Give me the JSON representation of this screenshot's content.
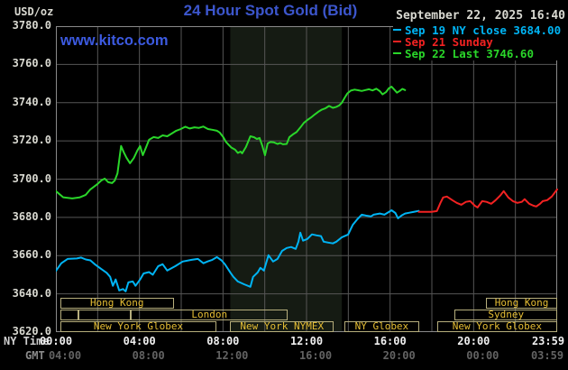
{
  "header": {
    "timestamp": "September 22, 2025 16:40",
    "watermark": "www.kitco.com"
  },
  "chart_data": {
    "type": "line",
    "title": "24 Hour Spot Gold (Bid)",
    "x_unit": "NY time, hours from 00:00",
    "x_range": [
      0,
      24
    ],
    "y_range": [
      3620,
      3780
    ],
    "y_tick_step": 20,
    "grid": true,
    "colors": {
      "background": "#000000",
      "grid": "#565656",
      "border": "#8a8a8a",
      "nymex_band": "#151b13",
      "title_blue": "#3c56cd"
    },
    "y_axis": {
      "units": "USD/oz",
      "ticks": [
        "3780.0",
        "3760.0",
        "3740.0",
        "3720.0",
        "3700.0",
        "3680.0",
        "3660.0",
        "3640.0",
        "3620.0"
      ]
    },
    "x_axis": {
      "ny_label": "NY Time",
      "gmt_label": "GMT",
      "tick_hours": [
        0,
        4,
        8,
        12,
        16,
        20,
        24
      ],
      "ny_ticks": [
        "00:00",
        "04:00",
        "08:00",
        "12:00",
        "16:00",
        "20:00",
        "23:59"
      ],
      "gmt_ticks": [
        "04:00",
        "08:00",
        "12:00",
        "16:00",
        "20:00",
        "00:00",
        "03:59"
      ],
      "ny_color": "#f0f0f0",
      "gmt_color": "#636363"
    },
    "legend": [
      {
        "label": "Sep 19 NY close 3684.00",
        "color": "#00b4f4"
      },
      {
        "label": "Sep 21 Sunday",
        "color": "#f32222"
      },
      {
        "label": "Sep 22 Last 3746.60",
        "color": "#2ad62a"
      }
    ],
    "nymex_band": {
      "h0": 8.35,
      "h1": 13.69
    },
    "series": [
      {
        "name": "Sep 19 NY close",
        "color": "#00b4f4",
        "close": 3684.0,
        "points": [
          [
            0,
            3652.0
          ],
          [
            0.26,
            3656.0
          ],
          [
            0.56,
            3658.3
          ],
          [
            1.0,
            3658.5
          ],
          [
            1.21,
            3659.0
          ],
          [
            1.43,
            3658.0
          ],
          [
            1.65,
            3657.5
          ],
          [
            1.86,
            3655.5
          ],
          [
            2.17,
            3653.0
          ],
          [
            2.43,
            3651.0
          ],
          [
            2.6,
            3648.9
          ],
          [
            2.73,
            3644.2
          ],
          [
            2.86,
            3647.5
          ],
          [
            3.03,
            3641.8
          ],
          [
            3.21,
            3642.5
          ],
          [
            3.34,
            3641.3
          ],
          [
            3.47,
            3646.0
          ],
          [
            3.68,
            3646.5
          ],
          [
            3.81,
            3644.2
          ],
          [
            4.03,
            3647.5
          ],
          [
            4.2,
            3650.7
          ],
          [
            4.46,
            3651.4
          ],
          [
            4.64,
            3650.0
          ],
          [
            4.9,
            3654.5
          ],
          [
            5.11,
            3655.5
          ],
          [
            5.33,
            3652.2
          ],
          [
            5.55,
            3653.5
          ],
          [
            5.72,
            3654.5
          ],
          [
            6.07,
            3656.9
          ],
          [
            6.5,
            3657.8
          ],
          [
            6.8,
            3658.3
          ],
          [
            7.06,
            3656.0
          ],
          [
            7.28,
            3657.0
          ],
          [
            7.49,
            3657.8
          ],
          [
            7.71,
            3659.2
          ],
          [
            7.93,
            3657.5
          ],
          [
            8.1,
            3655.4
          ],
          [
            8.36,
            3651.0
          ],
          [
            8.49,
            3649.0
          ],
          [
            8.71,
            3646.5
          ],
          [
            9.01,
            3645.0
          ],
          [
            9.31,
            3643.7
          ],
          [
            9.44,
            3648.9
          ],
          [
            9.66,
            3651.2
          ],
          [
            9.79,
            3653.6
          ],
          [
            9.96,
            3652.2
          ],
          [
            10.18,
            3660.2
          ],
          [
            10.4,
            3656.9
          ],
          [
            10.61,
            3658.3
          ],
          [
            10.83,
            3662.5
          ],
          [
            11.05,
            3664.0
          ],
          [
            11.26,
            3664.5
          ],
          [
            11.48,
            3663.5
          ],
          [
            11.61,
            3667.3
          ],
          [
            11.7,
            3672.0
          ],
          [
            11.83,
            3667.8
          ],
          [
            12.04,
            3668.7
          ],
          [
            12.26,
            3671.1
          ],
          [
            12.48,
            3670.6
          ],
          [
            12.69,
            3670.2
          ],
          [
            12.82,
            3667.3
          ],
          [
            13.04,
            3666.8
          ],
          [
            13.26,
            3666.4
          ],
          [
            13.43,
            3667.3
          ],
          [
            13.69,
            3669.6
          ],
          [
            13.99,
            3671.0
          ],
          [
            14.21,
            3676.0
          ],
          [
            14.43,
            3679.0
          ],
          [
            14.64,
            3681.4
          ],
          [
            14.86,
            3680.9
          ],
          [
            15.08,
            3680.5
          ],
          [
            15.21,
            3681.4
          ],
          [
            15.51,
            3682.0
          ],
          [
            15.73,
            3681.4
          ],
          [
            15.94,
            3682.8
          ],
          [
            16.07,
            3683.7
          ],
          [
            16.25,
            3682.3
          ],
          [
            16.38,
            3679.5
          ],
          [
            16.55,
            3681.0
          ],
          [
            16.72,
            3682.0
          ],
          [
            16.9,
            3682.4
          ],
          [
            17.11,
            3682.8
          ],
          [
            17.37,
            3683.4
          ]
        ]
      },
      {
        "name": "Sep 21 Sunday",
        "color": "#f32222",
        "points": [
          [
            17.37,
            3682.9
          ],
          [
            17.98,
            3682.9
          ],
          [
            18.24,
            3683.3
          ],
          [
            18.41,
            3687.6
          ],
          [
            18.54,
            3690.4
          ],
          [
            18.72,
            3690.9
          ],
          [
            18.98,
            3689.0
          ],
          [
            19.19,
            3687.6
          ],
          [
            19.41,
            3686.6
          ],
          [
            19.63,
            3688.1
          ],
          [
            19.84,
            3688.5
          ],
          [
            20.06,
            3686.1
          ],
          [
            20.19,
            3685.2
          ],
          [
            20.41,
            3688.5
          ],
          [
            20.62,
            3688.1
          ],
          [
            20.84,
            3687.1
          ],
          [
            21.05,
            3689.0
          ],
          [
            21.27,
            3691.4
          ],
          [
            21.44,
            3693.7
          ],
          [
            21.66,
            3690.4
          ],
          [
            21.88,
            3688.5
          ],
          [
            22.09,
            3687.6
          ],
          [
            22.31,
            3688.1
          ],
          [
            22.44,
            3689.5
          ],
          [
            22.66,
            3687.1
          ],
          [
            22.87,
            3686.1
          ],
          [
            23.0,
            3685.7
          ],
          [
            23.18,
            3687.1
          ],
          [
            23.31,
            3688.5
          ],
          [
            23.52,
            3689.0
          ],
          [
            23.74,
            3690.9
          ],
          [
            23.87,
            3692.8
          ],
          [
            24.0,
            3694.6
          ]
        ]
      },
      {
        "name": "Sep 22 Last",
        "color": "#2ad62a",
        "last": 3746.6,
        "points": [
          [
            0,
            3693.7
          ],
          [
            0.35,
            3690.5
          ],
          [
            0.78,
            3689.9
          ],
          [
            1.13,
            3690.4
          ],
          [
            1.43,
            3691.8
          ],
          [
            1.65,
            3694.6
          ],
          [
            2.0,
            3697.5
          ],
          [
            2.17,
            3699.3
          ],
          [
            2.34,
            3700.3
          ],
          [
            2.51,
            3698.4
          ],
          [
            2.69,
            3697.9
          ],
          [
            2.82,
            3699.3
          ],
          [
            2.95,
            3703.0
          ],
          [
            3.12,
            3717.3
          ],
          [
            3.25,
            3714.0
          ],
          [
            3.38,
            3711.2
          ],
          [
            3.55,
            3708.3
          ],
          [
            3.73,
            3711.0
          ],
          [
            3.9,
            3715.0
          ],
          [
            4.03,
            3717.3
          ],
          [
            4.16,
            3712.5
          ],
          [
            4.33,
            3717.0
          ],
          [
            4.46,
            3720.6
          ],
          [
            4.68,
            3722.0
          ],
          [
            4.9,
            3721.5
          ],
          [
            5.11,
            3722.9
          ],
          [
            5.33,
            3722.4
          ],
          [
            5.55,
            3723.9
          ],
          [
            5.76,
            3725.3
          ],
          [
            5.98,
            3726.2
          ],
          [
            6.2,
            3727.4
          ],
          [
            6.41,
            3726.5
          ],
          [
            6.63,
            3727.1
          ],
          [
            6.85,
            3726.8
          ],
          [
            7.06,
            3727.5
          ],
          [
            7.28,
            3726.2
          ],
          [
            7.49,
            3725.8
          ],
          [
            7.71,
            3725.3
          ],
          [
            7.84,
            3724.4
          ],
          [
            8.01,
            3722.0
          ],
          [
            8.14,
            3719.5
          ],
          [
            8.27,
            3718.0
          ],
          [
            8.4,
            3716.5
          ],
          [
            8.58,
            3715.4
          ],
          [
            8.71,
            3713.7
          ],
          [
            8.84,
            3714.4
          ],
          [
            8.92,
            3713.5
          ],
          [
            9.1,
            3716.8
          ],
          [
            9.31,
            3722.4
          ],
          [
            9.49,
            3721.9
          ],
          [
            9.62,
            3721.0
          ],
          [
            9.75,
            3721.5
          ],
          [
            9.88,
            3717.5
          ],
          [
            10.01,
            3712.5
          ],
          [
            10.14,
            3718.7
          ],
          [
            10.27,
            3719.4
          ],
          [
            10.44,
            3719.2
          ],
          [
            10.61,
            3718.4
          ],
          [
            10.74,
            3718.9
          ],
          [
            10.87,
            3718.2
          ],
          [
            11.05,
            3718.4
          ],
          [
            11.18,
            3722.0
          ],
          [
            11.35,
            3723.4
          ],
          [
            11.52,
            3724.6
          ],
          [
            11.7,
            3727.0
          ],
          [
            11.87,
            3729.4
          ],
          [
            12.04,
            3730.9
          ],
          [
            12.22,
            3732.3
          ],
          [
            12.39,
            3733.8
          ],
          [
            12.56,
            3735.2
          ],
          [
            12.74,
            3736.4
          ],
          [
            12.91,
            3737.1
          ],
          [
            13.08,
            3738.3
          ],
          [
            13.26,
            3737.3
          ],
          [
            13.43,
            3737.8
          ],
          [
            13.56,
            3738.5
          ],
          [
            13.69,
            3740.0
          ],
          [
            13.82,
            3742.5
          ],
          [
            13.95,
            3744.8
          ],
          [
            14.12,
            3746.3
          ],
          [
            14.3,
            3746.8
          ],
          [
            14.47,
            3746.5
          ],
          [
            14.64,
            3746.1
          ],
          [
            14.82,
            3746.6
          ],
          [
            14.99,
            3747.0
          ],
          [
            15.16,
            3746.4
          ],
          [
            15.34,
            3747.3
          ],
          [
            15.51,
            3746.0
          ],
          [
            15.64,
            3744.3
          ],
          [
            15.81,
            3745.6
          ],
          [
            15.94,
            3747.5
          ],
          [
            16.07,
            3748.4
          ],
          [
            16.2,
            3746.8
          ],
          [
            16.33,
            3745.2
          ],
          [
            16.46,
            3746.1
          ],
          [
            16.59,
            3747.2
          ],
          [
            16.72,
            3746.6
          ]
        ]
      }
    ]
  },
  "sessions": {
    "border_color": "#b6ae7c",
    "text_color": "#e6be34",
    "rows": [
      [
        {
          "label": "Hong Kong",
          "h0": 0.2,
          "h1": 5.65
        },
        {
          "label": "Hong Kong",
          "h0": 20.6,
          "h1": 24
        }
      ],
      [
        {
          "label": "",
          "h0": 0.2,
          "h1": 1.1
        },
        {
          "label": "",
          "h0": 1.1,
          "h1": 3.6
        },
        {
          "label": "London",
          "h0": 3.6,
          "h1": 11.1
        },
        {
          "label": "Sydney",
          "h0": 19.1,
          "h1": 24
        }
      ],
      [
        {
          "label": "New York Globex",
          "h0": 0.2,
          "h1": 7.7
        },
        {
          "label": "New York NYMEX",
          "h0": 8.35,
          "h1": 13.3
        },
        {
          "label": "NY Globex",
          "h0": 13.8,
          "h1": 17.4
        },
        {
          "label": "New York Globex",
          "h0": 18.25,
          "h1": 24
        }
      ]
    ]
  }
}
